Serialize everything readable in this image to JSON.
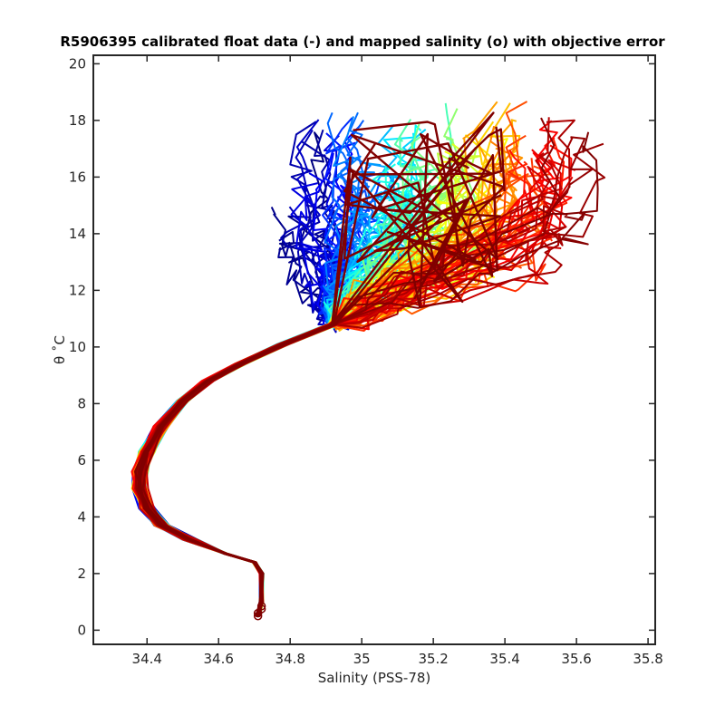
{
  "chart_data": {
    "type": "line",
    "title": "R5906395 calibrated float data (-) and mapped salinity (o) with objective error",
    "xlabel": "Salinity (PSS-78)",
    "ylabel": "θ ˚C",
    "xlim": [
      34.25,
      35.82
    ],
    "ylim": [
      -0.5,
      20.3
    ],
    "xticks": [
      "34.4",
      "34.6",
      "34.8",
      "35",
      "35.2",
      "35.4",
      "35.6",
      "35.8"
    ],
    "yticks": [
      "0",
      "2",
      "4",
      "6",
      "8",
      "10",
      "12",
      "14",
      "16",
      "18",
      "20"
    ],
    "grid": false,
    "colormap": "jet",
    "deep_profile": {
      "salinity": [
        34.71,
        34.72,
        34.72,
        34.7,
        34.62,
        34.52,
        34.44,
        34.4,
        34.38,
        34.38,
        34.4,
        34.44,
        34.5,
        34.57,
        34.66,
        34.78,
        34.92
      ],
      "theta": [
        0.5,
        1.0,
        2.0,
        2.4,
        2.7,
        3.2,
        3.7,
        4.3,
        5.0,
        5.6,
        6.3,
        7.2,
        8.1,
        8.8,
        9.4,
        10.1,
        10.8
      ]
    },
    "upper_cloud": {
      "salinity_range": [
        34.75,
        35.7
      ],
      "theta_range": [
        10.0,
        19.2
      ],
      "profile_count": 160
    },
    "mapped_points": {
      "salinity": [
        34.71,
        34.71,
        34.72,
        34.72
      ],
      "theta": [
        0.5,
        0.6,
        0.75,
        0.85
      ]
    }
  }
}
